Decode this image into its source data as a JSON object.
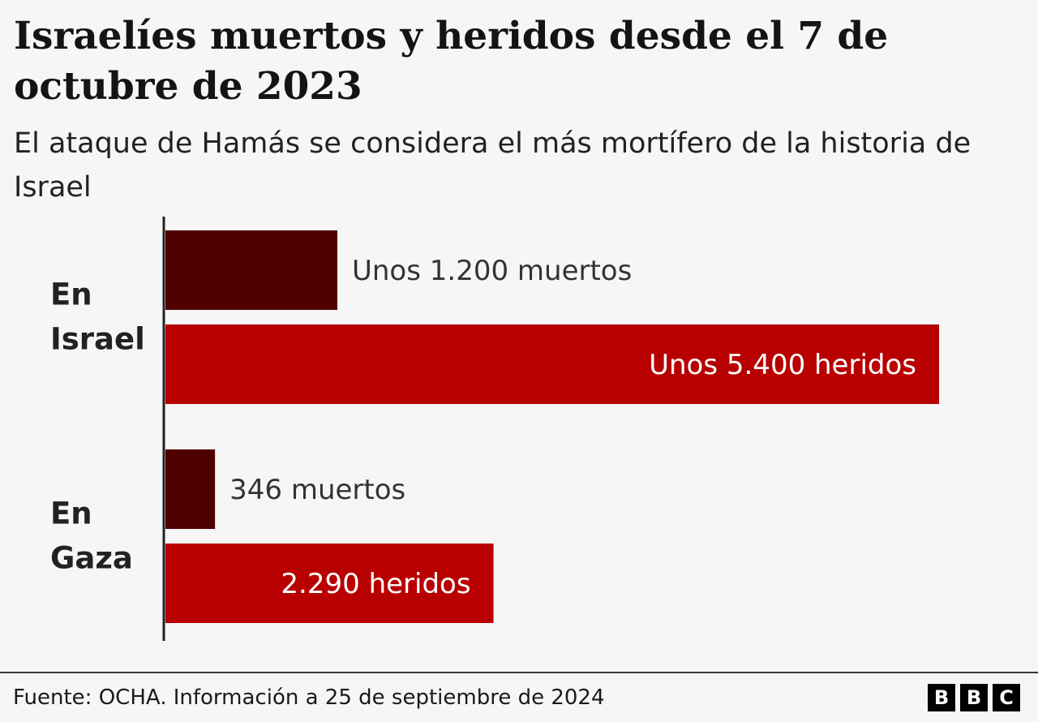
{
  "title": "Israelíes muertos y heridos desde el 7 de octubre de 2023",
  "subtitle": "El ataque de Hamás se considera el más mortífero de la historia de Israel",
  "source": "Fuente: OCHA. Información a 25 de septiembre de 2024",
  "logo_letters": [
    "B",
    "B",
    "C"
  ],
  "colors": {
    "muertos": "#510000",
    "heridos": "#b80000",
    "background": "#f6f6f6",
    "axis": "#222222",
    "label_outside": "#333333",
    "label_inside": "#ffffff"
  },
  "chart_data": {
    "type": "bar",
    "orientation": "horizontal",
    "grid": false,
    "legend": "none",
    "groups": [
      {
        "label": "En Israel",
        "bars": [
          {
            "kind": "muertos",
            "value": 1200,
            "label": "Unos 1.200 muertos"
          },
          {
            "kind": "heridos",
            "value": 5400,
            "label": "Unos 5.400 heridos"
          }
        ]
      },
      {
        "label": "En Gaza",
        "bars": [
          {
            "kind": "muertos",
            "value": 346,
            "label": "346 muertos"
          },
          {
            "kind": "heridos",
            "value": 2290,
            "label": "2.290 heridos"
          }
        ]
      }
    ]
  }
}
